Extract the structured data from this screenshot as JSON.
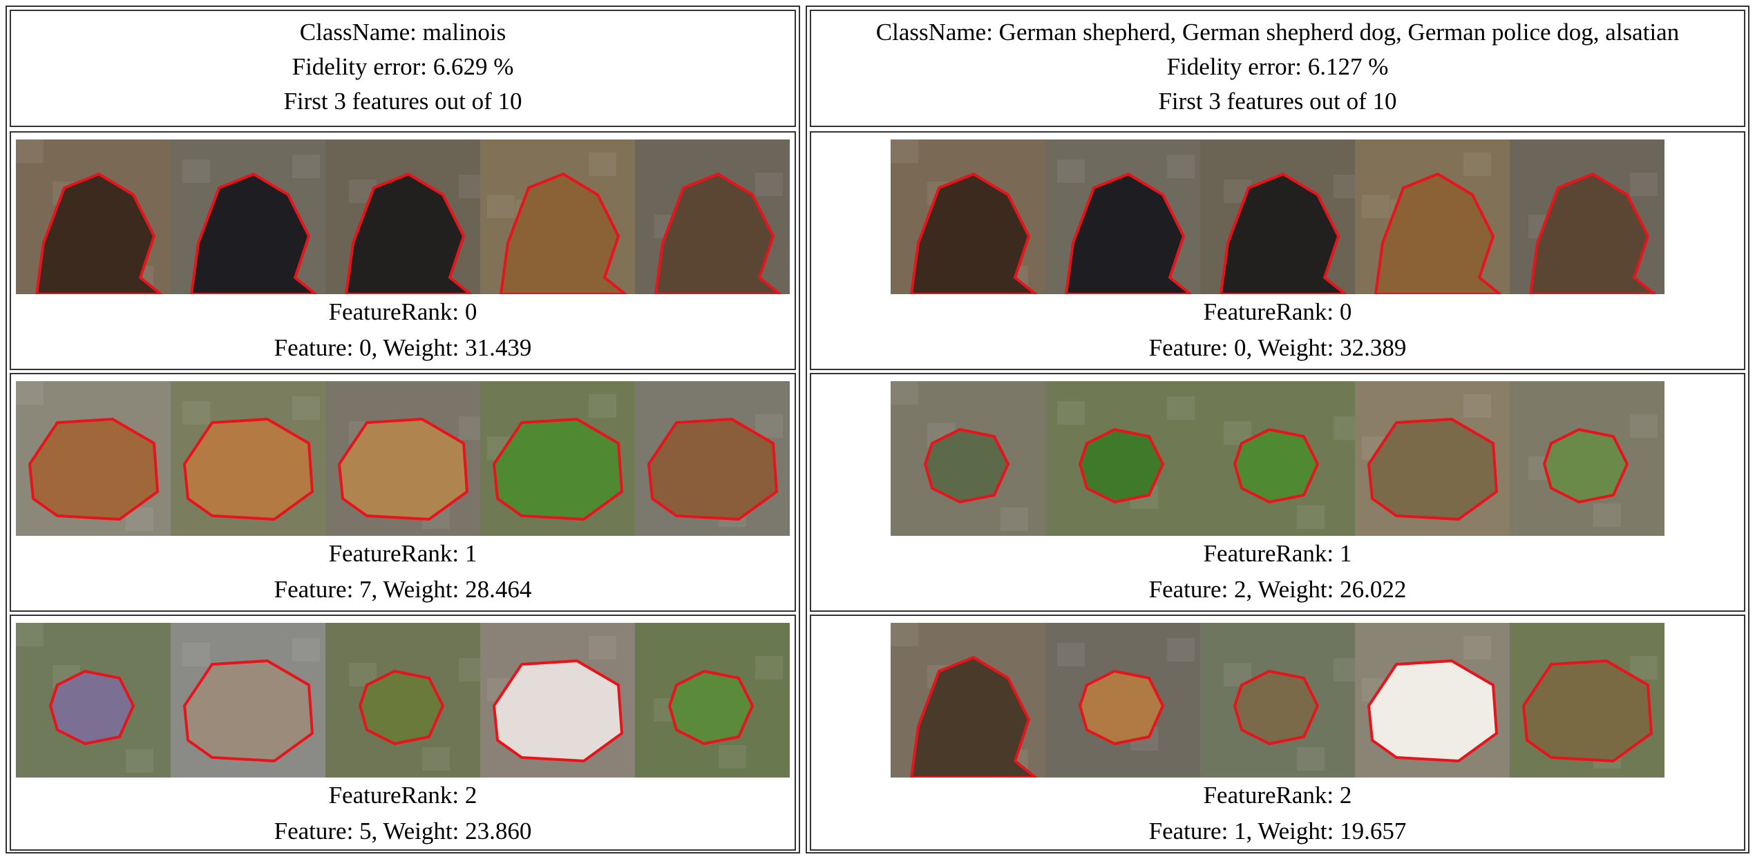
{
  "panels": [
    {
      "class_name": "ClassName: malinois",
      "fidelity": "Fidelity error: 6.629 %",
      "features_summary": "First 3 features out of 10",
      "rows": [
        {
          "rank": "FeatureRank: 0",
          "feature": "Feature: 0, Weight: 31.439",
          "tiles": [
            {
              "bg": "#7a6a55",
              "fg": "#3c2a1f",
              "kind": "head"
            },
            {
              "bg": "#6f6a5e",
              "fg": "#1e1e22",
              "kind": "head"
            },
            {
              "bg": "#6b6354",
              "fg": "#22201e",
              "kind": "head"
            },
            {
              "bg": "#807157",
              "fg": "#8a6236",
              "kind": "head"
            },
            {
              "bg": "#6c655a",
              "fg": "#5a4632",
              "kind": "head"
            }
          ]
        },
        {
          "rank": "FeatureRank: 1",
          "feature": "Feature: 7, Weight: 28.464",
          "tiles": [
            {
              "bg": "#8b8779",
              "fg": "#a0683a",
              "kind": "dog"
            },
            {
              "bg": "#7a7e5e",
              "fg": "#b47a44",
              "kind": "dog"
            },
            {
              "bg": "#7a7568",
              "fg": "#b0844e",
              "kind": "dog"
            },
            {
              "bg": "#6f7a55",
              "fg": "#4f8a32",
              "kind": "dog"
            },
            {
              "bg": "#7b786d",
              "fg": "#8a5e3a",
              "kind": "dog"
            }
          ]
        },
        {
          "rank": "FeatureRank: 2",
          "feature": "Feature: 5, Weight: 23.860",
          "tiles": [
            {
              "bg": "#6f7a5a",
              "fg": "#7c6f94",
              "kind": "small"
            },
            {
              "bg": "#8a8a86",
              "fg": "#9a8b7a",
              "kind": "dog"
            },
            {
              "bg": "#6f7656",
              "fg": "#6a7a3a",
              "kind": "small"
            },
            {
              "bg": "#8a8276",
              "fg": "#e4dcd8",
              "kind": "dog"
            },
            {
              "bg": "#6a7850",
              "fg": "#5a8a3a",
              "kind": "small"
            }
          ]
        }
      ]
    },
    {
      "class_name": "ClassName: German shepherd, German shepherd dog, German police dog, alsatian",
      "fidelity": "Fidelity error: 6.127 %",
      "features_summary": "First 3 features out of 10",
      "rows": [
        {
          "rank": "FeatureRank: 0",
          "feature": "Feature: 0, Weight: 32.389",
          "tiles": [
            {
              "bg": "#7a6a55",
              "fg": "#3c2a1f",
              "kind": "head"
            },
            {
              "bg": "#6f6a5e",
              "fg": "#1e1e22",
              "kind": "head"
            },
            {
              "bg": "#6b6354",
              "fg": "#22201e",
              "kind": "head"
            },
            {
              "bg": "#807157",
              "fg": "#8a6236",
              "kind": "head"
            },
            {
              "bg": "#6c655a",
              "fg": "#5a4632",
              "kind": "head"
            }
          ]
        },
        {
          "rank": "FeatureRank: 1",
          "feature": "Feature: 2, Weight: 26.022",
          "tiles": [
            {
              "bg": "#7b7868",
              "fg": "#5c6a4a",
              "kind": "small"
            },
            {
              "bg": "#6f7a55",
              "fg": "#3f7a2a",
              "kind": "small"
            },
            {
              "bg": "#6f7a55",
              "fg": "#4f8a32",
              "kind": "small"
            },
            {
              "bg": "#8a7e66",
              "fg": "#7a6a4a",
              "kind": "dog"
            },
            {
              "bg": "#7e7a68",
              "fg": "#6a8a4a",
              "kind": "small"
            }
          ]
        },
        {
          "rank": "FeatureRank: 2",
          "feature": "Feature: 1, Weight: 19.657",
          "tiles": [
            {
              "bg": "#7a6f5e",
              "fg": "#4a3a2a",
              "kind": "head"
            },
            {
              "bg": "#6f6a60",
              "fg": "#b07a44",
              "kind": "small"
            },
            {
              "bg": "#6f7660",
              "fg": "#7a6a4a",
              "kind": "small"
            },
            {
              "bg": "#8a8474",
              "fg": "#f0ece6",
              "kind": "dog"
            },
            {
              "bg": "#6f7a55",
              "fg": "#7a6a44",
              "kind": "dog"
            }
          ]
        }
      ]
    }
  ],
  "colors": {
    "outline": "#e8141c",
    "border": "#333333"
  }
}
